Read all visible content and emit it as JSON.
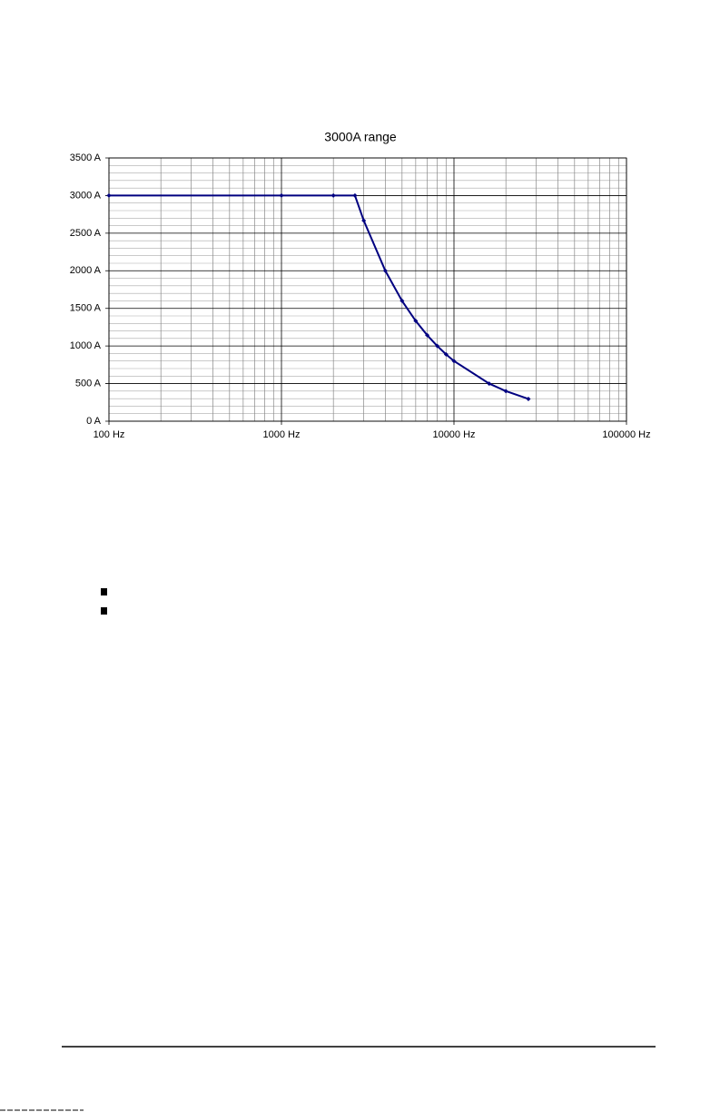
{
  "chart_data": {
    "type": "line",
    "title": "3000A range",
    "x": [
      100,
      1000,
      2000,
      2667,
      3000,
      4000,
      5000,
      6000,
      7000,
      8000,
      9000,
      10000,
      16000,
      20000,
      27000
    ],
    "series": [
      {
        "color": "#000080",
        "values": [
          3000,
          3000,
          3000,
          3000,
          2667,
          2000,
          1600,
          1333,
          1143,
          1000,
          889,
          800,
          500,
          400,
          296
        ]
      }
    ],
    "xlog": true,
    "xlim": [
      100,
      100000
    ],
    "xticks": [
      {
        "value": 100,
        "label": "100 Hz"
      },
      {
        "value": 1000,
        "label": "1000 Hz"
      },
      {
        "value": 10000,
        "label": "10000 Hz"
      },
      {
        "value": 100000,
        "label": "100000 Hz"
      }
    ],
    "xminorticks": [
      200,
      300,
      400,
      500,
      600,
      700,
      800,
      900,
      2000,
      3000,
      4000,
      5000,
      6000,
      7000,
      8000,
      9000,
      20000,
      30000,
      40000,
      50000,
      60000,
      70000,
      80000,
      90000
    ],
    "ylim": [
      0,
      3500
    ],
    "yticks": [
      {
        "value": 0,
        "label": "0 A"
      },
      {
        "value": 500,
        "label": "500 A"
      },
      {
        "value": 1000,
        "label": "1000 A"
      },
      {
        "value": 1500,
        "label": "1500 A"
      },
      {
        "value": 2000,
        "label": "2000 A"
      },
      {
        "value": 2500,
        "label": "2500 A"
      },
      {
        "value": 3000,
        "label": "3000 A"
      },
      {
        "value": 3500,
        "label": "3500 A"
      }
    ],
    "yminorticks": [
      100,
      200,
      300,
      400,
      600,
      700,
      800,
      900,
      1100,
      1200,
      1300,
      1400,
      1600,
      1700,
      1800,
      1900,
      2100,
      2200,
      2300,
      2400,
      2600,
      2700,
      2800,
      2900,
      3100,
      3200,
      3300,
      3400
    ],
    "grid": true
  }
}
